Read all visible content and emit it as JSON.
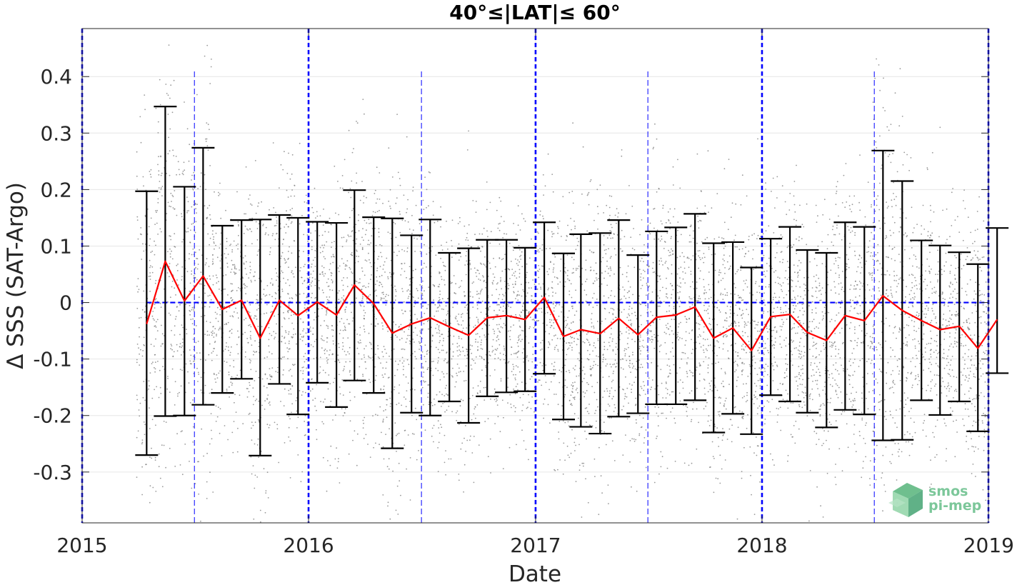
{
  "chart_data": {
    "type": "line",
    "title": "40°≤|LAT|≤ 60°",
    "xlabel": "Date",
    "ylabel": "Δ SSS (SAT-Argo)",
    "xlim": [
      "2015-01-01",
      "2019-01-01"
    ],
    "ylim": [
      -0.39,
      0.485
    ],
    "x_ticks": [
      "2015",
      "2016",
      "2017",
      "2018",
      "2019"
    ],
    "y_ticks": [
      -0.3,
      -0.2,
      -0.1,
      0,
      0.1,
      0.2,
      0.3,
      0.4
    ],
    "y_tick_labels": [
      "-0.3",
      "-0.2",
      "-0.1",
      "0",
      "0.1",
      "0.2",
      "0.3",
      "0.4"
    ],
    "grid": true,
    "year_boundary_lines": [
      "2015-01-01",
      "2016-01-01",
      "2017-01-01",
      "2018-01-01",
      "2019-01-01"
    ],
    "half_year_lines": [
      "2015-07-01",
      "2016-07-01",
      "2017-07-01",
      "2018-07-01"
    ],
    "zero_line": 0,
    "colors": {
      "mean_line": "#ff0000",
      "error_bars": "#000000",
      "scatter": "#7f7f7f",
      "reference_lines": "#0000ff",
      "grid": "#e6e6e6",
      "axes": "#262626"
    },
    "series": [
      {
        "name": "mean",
        "x": [
          "2015-04-15",
          "2015-05-15",
          "2015-06-15",
          "2015-07-15",
          "2015-08-15",
          "2015-09-15",
          "2015-10-15",
          "2015-11-15",
          "2015-12-15",
          "2016-01-15",
          "2016-02-15",
          "2016-03-15",
          "2016-04-15",
          "2016-05-15",
          "2016-06-15",
          "2016-07-15",
          "2016-08-15",
          "2016-09-15",
          "2016-10-15",
          "2016-11-15",
          "2016-12-15",
          "2017-01-15",
          "2017-02-15",
          "2017-03-15",
          "2017-04-15",
          "2017-05-15",
          "2017-06-15",
          "2017-07-15",
          "2017-08-15",
          "2017-09-15",
          "2017-10-15",
          "2017-11-15",
          "2017-12-15",
          "2018-01-15",
          "2018-02-15",
          "2018-03-15",
          "2018-04-15",
          "2018-05-15",
          "2018-06-15",
          "2018-07-15",
          "2018-08-15",
          "2018-09-15",
          "2018-10-15",
          "2018-11-15",
          "2018-12-15",
          "2019-01-15"
        ],
        "values": [
          -0.038,
          0.073,
          0.003,
          0.047,
          -0.012,
          0.004,
          -0.063,
          0.004,
          -0.023,
          0.001,
          -0.022,
          0.031,
          -0.002,
          -0.054,
          -0.038,
          -0.027,
          -0.043,
          -0.058,
          -0.027,
          -0.023,
          -0.03,
          0.009,
          -0.06,
          -0.048,
          -0.055,
          -0.028,
          -0.057,
          -0.026,
          -0.022,
          -0.008,
          -0.063,
          -0.045,
          -0.085,
          -0.025,
          -0.021,
          -0.053,
          -0.067,
          -0.023,
          -0.032,
          0.012,
          -0.014,
          -0.032,
          -0.048,
          -0.042,
          -0.081,
          -0.03
        ]
      },
      {
        "name": "upper",
        "values": [
          0.197,
          0.347,
          0.205,
          0.274,
          0.136,
          0.146,
          0.147,
          0.155,
          0.15,
          0.143,
          0.141,
          0.199,
          0.151,
          0.149,
          0.119,
          0.147,
          0.088,
          0.096,
          0.111,
          0.111,
          0.097,
          0.142,
          0.087,
          0.121,
          0.123,
          0.146,
          0.084,
          0.126,
          0.133,
          0.157,
          0.105,
          0.107,
          0.062,
          0.113,
          0.134,
          0.093,
          0.088,
          0.142,
          0.134,
          0.269,
          0.215,
          0.11,
          0.101,
          0.089,
          0.068,
          0.132
        ]
      },
      {
        "name": "lower",
        "values": [
          -0.27,
          -0.201,
          -0.2,
          -0.181,
          -0.16,
          -0.135,
          -0.271,
          -0.144,
          -0.198,
          -0.142,
          -0.185,
          -0.138,
          -0.16,
          -0.258,
          -0.195,
          -0.2,
          -0.175,
          -0.213,
          -0.166,
          -0.159,
          -0.157,
          -0.126,
          -0.207,
          -0.22,
          -0.232,
          -0.202,
          -0.196,
          -0.18,
          -0.18,
          -0.173,
          -0.23,
          -0.197,
          -0.233,
          -0.164,
          -0.175,
          -0.195,
          -0.221,
          -0.19,
          -0.198,
          -0.244,
          -0.243,
          -0.173,
          -0.199,
          -0.175,
          -0.228,
          -0.125
        ]
      }
    ],
    "logo": {
      "line1": "smos",
      "line2": "pi-mep"
    }
  }
}
